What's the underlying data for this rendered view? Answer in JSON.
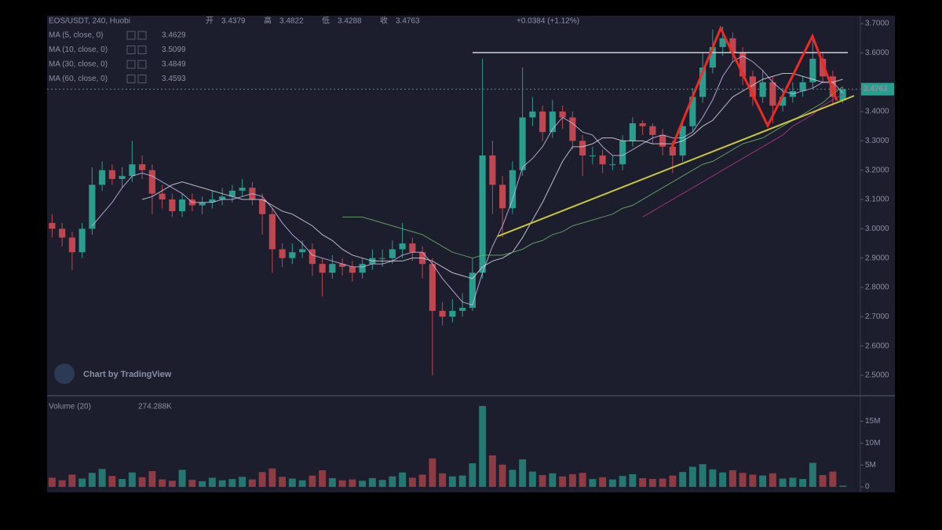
{
  "chart_data": [
    {
      "type": "candlestick",
      "title": "EOS/USDT, 240, Huobi",
      "quote_labels": [
        "开",
        "高",
        "低",
        "收"
      ],
      "change": "+0.0384 (+1.12%)",
      "watermark": "Chart by TradingView",
      "up_color": "#2a9d8f",
      "down_color": "#c0474f",
      "open": [
        3.02,
        3.0,
        2.97,
        2.92,
        3.0,
        3.15,
        3.2,
        3.17,
        3.18,
        3.22,
        3.2,
        3.12,
        3.1,
        3.06,
        3.1,
        3.08,
        3.09,
        3.1,
        3.11,
        3.13,
        3.14,
        3.1,
        3.05,
        2.93,
        2.9,
        2.92,
        2.93,
        2.88,
        2.85,
        2.88,
        2.87,
        2.85,
        2.88,
        2.9,
        2.9,
        2.93,
        2.95,
        2.92,
        2.88,
        2.72,
        2.7,
        2.72,
        2.73,
        2.85,
        3.25,
        3.15,
        3.07,
        3.2,
        3.38,
        3.4,
        3.33,
        3.4,
        3.38,
        3.3,
        3.25,
        3.25,
        3.22,
        3.22,
        3.3,
        3.36,
        3.35,
        3.32,
        3.28,
        3.25,
        3.35,
        3.45,
        3.55,
        3.62,
        3.65,
        3.6,
        3.52,
        3.45,
        3.5,
        3.42,
        3.45,
        3.47,
        3.5,
        3.58,
        3.52,
        3.4379
      ],
      "high": [
        3.05,
        3.02,
        2.99,
        3.02,
        3.21,
        3.23,
        3.22,
        3.21,
        3.3,
        3.25,
        3.22,
        3.15,
        3.12,
        3.12,
        3.12,
        3.11,
        3.13,
        3.14,
        3.15,
        3.17,
        3.16,
        3.12,
        3.07,
        2.95,
        2.95,
        2.96,
        2.95,
        2.9,
        2.91,
        2.9,
        2.89,
        2.9,
        2.93,
        2.93,
        2.96,
        3.02,
        2.97,
        2.94,
        2.9,
        2.75,
        2.76,
        2.78,
        2.9,
        3.58,
        3.3,
        3.18,
        3.23,
        3.55,
        3.45,
        3.42,
        3.44,
        3.42,
        3.4,
        3.32,
        3.28,
        3.27,
        3.25,
        3.32,
        3.38,
        3.37,
        3.36,
        3.34,
        3.3,
        3.37,
        3.48,
        3.6,
        3.68,
        3.69,
        3.67,
        3.62,
        3.54,
        3.54,
        3.52,
        3.48,
        3.5,
        3.52,
        3.66,
        3.6,
        3.54,
        3.4822
      ],
      "low": [
        2.97,
        2.94,
        2.86,
        2.9,
        2.98,
        3.13,
        3.15,
        3.14,
        3.16,
        3.17,
        3.05,
        3.07,
        3.04,
        3.04,
        3.06,
        3.05,
        3.07,
        3.08,
        3.09,
        3.11,
        3.08,
        2.98,
        2.85,
        2.87,
        2.88,
        2.9,
        2.84,
        2.77,
        2.83,
        2.84,
        2.82,
        2.83,
        2.86,
        2.87,
        2.88,
        2.9,
        2.89,
        2.83,
        2.5,
        2.67,
        2.68,
        2.7,
        2.72,
        2.83,
        3.05,
        2.97,
        3.05,
        3.18,
        3.35,
        3.3,
        3.31,
        3.34,
        3.27,
        3.18,
        3.22,
        3.19,
        3.2,
        3.2,
        3.28,
        3.32,
        3.29,
        3.25,
        3.19,
        3.23,
        3.33,
        3.43,
        3.53,
        3.59,
        3.57,
        3.49,
        3.42,
        3.43,
        3.36,
        3.4,
        3.43,
        3.45,
        3.48,
        3.5,
        3.42,
        3.4288
      ],
      "close": [
        3.0,
        2.97,
        2.92,
        3.0,
        3.15,
        3.2,
        3.17,
        3.18,
        3.22,
        3.2,
        3.12,
        3.1,
        3.06,
        3.1,
        3.08,
        3.09,
        3.1,
        3.11,
        3.13,
        3.14,
        3.1,
        3.05,
        2.93,
        2.9,
        2.92,
        2.93,
        2.88,
        2.85,
        2.88,
        2.87,
        2.85,
        2.88,
        2.9,
        2.9,
        2.93,
        2.95,
        2.92,
        2.88,
        2.72,
        2.7,
        2.72,
        2.73,
        2.85,
        3.25,
        3.15,
        3.07,
        3.2,
        3.38,
        3.4,
        3.33,
        3.4,
        3.38,
        3.3,
        3.25,
        3.25,
        3.22,
        3.22,
        3.3,
        3.36,
        3.35,
        3.32,
        3.28,
        3.25,
        3.35,
        3.45,
        3.55,
        3.62,
        3.65,
        3.6,
        3.52,
        3.45,
        3.5,
        3.42,
        3.45,
        3.47,
        3.5,
        3.58,
        3.52,
        3.45,
        3.4763
      ],
      "series": [
        {
          "name": "MA (5, close, 0)",
          "color": "#c9b7e8",
          "values": [
            null,
            null,
            null,
            null,
            3.01,
            3.05,
            3.09,
            3.14,
            3.18,
            3.19,
            3.18,
            3.16,
            3.14,
            3.12,
            3.09,
            3.09,
            3.09,
            3.1,
            3.1,
            3.11,
            3.12,
            3.11,
            3.07,
            3.02,
            2.98,
            2.95,
            2.91,
            2.9,
            2.89,
            2.88,
            2.87,
            2.87,
            2.88,
            2.88,
            2.89,
            2.91,
            2.92,
            2.92,
            2.88,
            2.83,
            2.79,
            2.75,
            2.74,
            2.85,
            2.94,
            3.01,
            3.1,
            3.21,
            3.24,
            3.28,
            3.34,
            3.38,
            3.36,
            3.33,
            3.32,
            3.28,
            3.25,
            3.25,
            3.27,
            3.29,
            3.31,
            3.32,
            3.31,
            3.31,
            3.33,
            3.38,
            3.44,
            3.52,
            3.57,
            3.59,
            3.57,
            3.54,
            3.5,
            3.47,
            3.46,
            3.47,
            3.48,
            3.5,
            3.5,
            3.4629
          ]
        },
        {
          "name": "MA (10, close, 0)",
          "color": "#d8d8e0",
          "values": [
            null,
            null,
            null,
            null,
            null,
            null,
            null,
            null,
            null,
            3.1,
            3.11,
            3.13,
            3.15,
            3.16,
            3.15,
            3.14,
            3.13,
            3.12,
            3.11,
            3.1,
            3.1,
            3.1,
            3.08,
            3.06,
            3.05,
            3.03,
            3.01,
            2.98,
            2.96,
            2.93,
            2.91,
            2.9,
            2.89,
            2.89,
            2.89,
            2.89,
            2.9,
            2.9,
            2.89,
            2.87,
            2.85,
            2.84,
            2.83,
            2.87,
            2.89,
            2.9,
            2.92,
            2.97,
            3.03,
            3.09,
            3.16,
            3.23,
            3.28,
            3.28,
            3.29,
            3.31,
            3.31,
            3.3,
            3.3,
            3.3,
            3.29,
            3.29,
            3.29,
            3.3,
            3.32,
            3.35,
            3.37,
            3.41,
            3.45,
            3.47,
            3.49,
            3.51,
            3.52,
            3.53,
            3.53,
            3.52,
            3.51,
            3.5,
            3.5,
            3.5099
          ]
        },
        {
          "name": "MA (30, close, 0)",
          "color": "#6fae6a",
          "values": [
            null,
            null,
            null,
            null,
            null,
            null,
            null,
            null,
            null,
            null,
            null,
            null,
            null,
            null,
            null,
            null,
            null,
            null,
            null,
            null,
            null,
            null,
            null,
            null,
            null,
            null,
            null,
            null,
            null,
            3.04,
            3.04,
            3.04,
            3.03,
            3.02,
            3.01,
            3.0,
            2.99,
            2.98,
            2.96,
            2.94,
            2.92,
            2.91,
            2.9,
            2.91,
            2.91,
            2.91,
            2.92,
            2.93,
            2.95,
            2.96,
            2.98,
            2.99,
            3.01,
            3.02,
            3.03,
            3.04,
            3.05,
            3.07,
            3.08,
            3.1,
            3.12,
            3.14,
            3.16,
            3.18,
            3.2,
            3.22,
            3.23,
            3.25,
            3.27,
            3.29,
            3.3,
            3.31,
            3.33,
            3.35,
            3.37,
            3.39,
            3.41,
            3.43,
            3.46,
            3.4849
          ]
        },
        {
          "name": "MA (60, close, 0)",
          "color": "#b2368a",
          "values": [
            null,
            null,
            null,
            null,
            null,
            null,
            null,
            null,
            null,
            null,
            null,
            null,
            null,
            null,
            null,
            null,
            null,
            null,
            null,
            null,
            null,
            null,
            null,
            null,
            null,
            null,
            null,
            null,
            null,
            null,
            null,
            null,
            null,
            null,
            null,
            null,
            null,
            null,
            null,
            null,
            null,
            null,
            null,
            null,
            null,
            null,
            null,
            null,
            null,
            null,
            null,
            null,
            null,
            null,
            null,
            null,
            null,
            null,
            null,
            3.04,
            3.06,
            3.08,
            3.1,
            3.12,
            3.14,
            3.16,
            3.18,
            3.2,
            3.22,
            3.24,
            3.26,
            3.28,
            3.3,
            3.32,
            3.35,
            3.37,
            3.39,
            3.42,
            3.44,
            3.4593
          ]
        }
      ],
      "ylim": [
        2.433,
        3.727
      ],
      "yticks": [
        {
          "value": 2.5,
          "label": "2.5000"
        },
        {
          "value": 2.6,
          "label": "2.6000"
        },
        {
          "value": 2.7,
          "label": "2.7000"
        },
        {
          "value": 2.8,
          "label": "2.8000"
        },
        {
          "value": 2.9,
          "label": "2.9000"
        },
        {
          "value": 3.0,
          "label": "3.0000"
        },
        {
          "value": 3.1,
          "label": "3.1000"
        },
        {
          "value": 3.2,
          "label": "3.2000"
        },
        {
          "value": 3.3,
          "label": "3.3000"
        },
        {
          "value": 3.4,
          "label": "3.4000"
        },
        {
          "value": 3.6,
          "label": "3.6000"
        },
        {
          "value": 3.7,
          "label": "3.7000"
        }
      ]
    },
    {
      "type": "bar",
      "name": "Volume (20)",
      "values": [
        2100000,
        1500000,
        2800000,
        1900000,
        3200000,
        4100000,
        2500000,
        1800000,
        3300000,
        2200000,
        3600000,
        1700000,
        1400000,
        3900000,
        1600000,
        1300000,
        2100000,
        1500000,
        1800000,
        2300000,
        1700000,
        3400000,
        4200000,
        2300000,
        1900000,
        1500000,
        2600000,
        3800000,
        2000000,
        1500000,
        1700000,
        1400000,
        2000000,
        1600000,
        2400000,
        3300000,
        2100000,
        2800000,
        6500000,
        3100000,
        2400000,
        2600000,
        5400000,
        18500000,
        7200000,
        5100000,
        3900000,
        6300000,
        3500000,
        2700000,
        3100000,
        2400000,
        2900000,
        3200000,
        1800000,
        2200000,
        1700000,
        2500000,
        2900000,
        2000000,
        1800000,
        1900000,
        2600000,
        3400000,
        4600000,
        5200000,
        4000000,
        3300000,
        3800000,
        3200000,
        2800000,
        2600000,
        3100000,
        1900000,
        2100000,
        1800000,
        5500000,
        2700000,
        3500000,
        274288
      ],
      "value_labels": [
        null,
        null,
        null,
        null,
        null,
        null,
        null,
        null,
        null,
        null,
        null,
        null,
        null,
        null,
        null,
        null,
        null,
        null,
        null,
        null,
        null,
        null,
        null,
        null,
        null,
        null,
        null,
        null,
        null,
        null,
        null,
        null,
        null,
        null,
        null,
        null,
        null,
        null,
        null,
        null,
        null,
        null,
        null,
        null,
        null,
        null,
        null,
        null,
        null,
        null,
        null,
        null,
        null,
        null,
        null,
        null,
        null,
        null,
        null,
        null,
        null,
        null,
        null,
        null,
        null,
        null,
        null,
        null,
        null,
        null,
        null,
        null,
        null,
        null,
        null,
        null,
        null,
        null,
        null,
        "274.288K"
      ],
      "ylim": [
        -1240000,
        20300000
      ],
      "yticks": [
        0,
        {
          "value": 5000000,
          "label": "5M"
        },
        {
          "value": 10000000,
          "label": "10M"
        },
        {
          "value": 15000000,
          "label": "15M"
        }
      ]
    }
  ]
}
